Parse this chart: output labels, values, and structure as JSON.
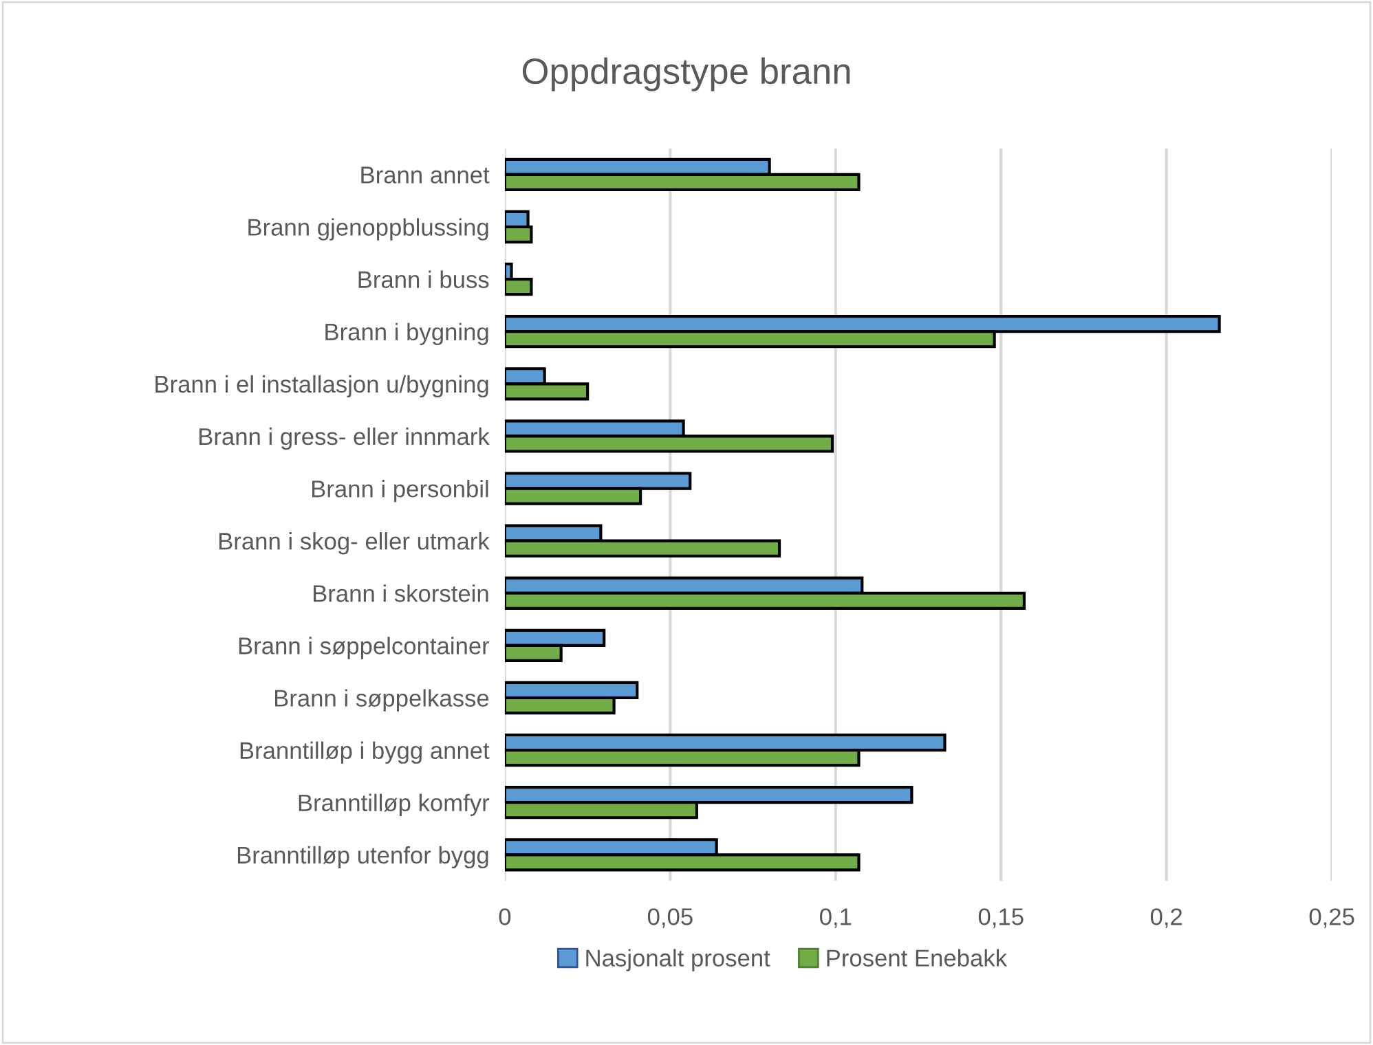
{
  "chart_data": {
    "type": "bar",
    "orientation": "horizontal",
    "title": "Oppdragstype brann",
    "categories": [
      "Brann annet",
      "Brann gjenoppblussing",
      "Brann i buss",
      "Brann i bygning",
      "Brann i el installasjon u/bygning",
      "Brann i gress- eller innmark",
      "Brann i personbil",
      "Brann i skog- eller utmark",
      "Brann i skorstein",
      "Brann i søppelcontainer",
      "Brann i søppelkasse",
      "Branntilløp i bygg annet",
      "Branntilløp komfyr",
      "Branntilløp utenfor bygg"
    ],
    "series": [
      {
        "name": "Nasjonalt prosent",
        "color": "#5b9bd5",
        "values": [
          0.08,
          0.007,
          0.002,
          0.216,
          0.012,
          0.054,
          0.056,
          0.029,
          0.108,
          0.03,
          0.04,
          0.133,
          0.123,
          0.064
        ]
      },
      {
        "name": "Prosent Enebakk",
        "color": "#70ad47",
        "values": [
          0.107,
          0.008,
          0.008,
          0.148,
          0.025,
          0.099,
          0.041,
          0.083,
          0.157,
          0.017,
          0.033,
          0.107,
          0.058,
          0.107
        ]
      }
    ],
    "xlim": [
      0,
      0.25
    ],
    "xticks": [
      0,
      {
        "value": 0.05,
        "label": "0,05"
      },
      {
        "value": 0.1,
        "label": "0,1"
      },
      {
        "value": 0.15,
        "label": "0,15"
      },
      {
        "value": 0.2,
        "label": "0,2"
      },
      {
        "value": 0.25,
        "label": "0,25"
      }
    ],
    "grid": "x",
    "legend": "bottom"
  }
}
